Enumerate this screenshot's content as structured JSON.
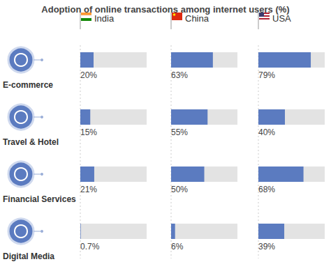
{
  "chart_data": {
    "type": "bar",
    "orientation": "horizontal",
    "title": "Adoption of online transactions among internet users (%)",
    "categories": [
      "E-commerce",
      "Travel & Hotel",
      "Financial Services",
      "Digital Media"
    ],
    "series": [
      {
        "name": "India",
        "color": "#5b7bc0",
        "values": [
          20,
          15,
          21,
          0.7
        ],
        "value_labels": [
          "20%",
          "15%",
          "21%",
          "0.7%"
        ]
      },
      {
        "name": "China",
        "color": "#5b7bc0",
        "values": [
          63,
          55,
          50,
          6
        ],
        "value_labels": [
          "63%",
          "55%",
          "50%",
          "6%"
        ]
      },
      {
        "name": "USA",
        "color": "#5b7bc0",
        "values": [
          79,
          40,
          68,
          39
        ],
        "value_labels": [
          "79%",
          "40%",
          "68%",
          "39%"
        ]
      }
    ],
    "xlim": [
      0,
      100
    ],
    "tick_labels": "y",
    "data_labels": true,
    "grid": false
  }
}
